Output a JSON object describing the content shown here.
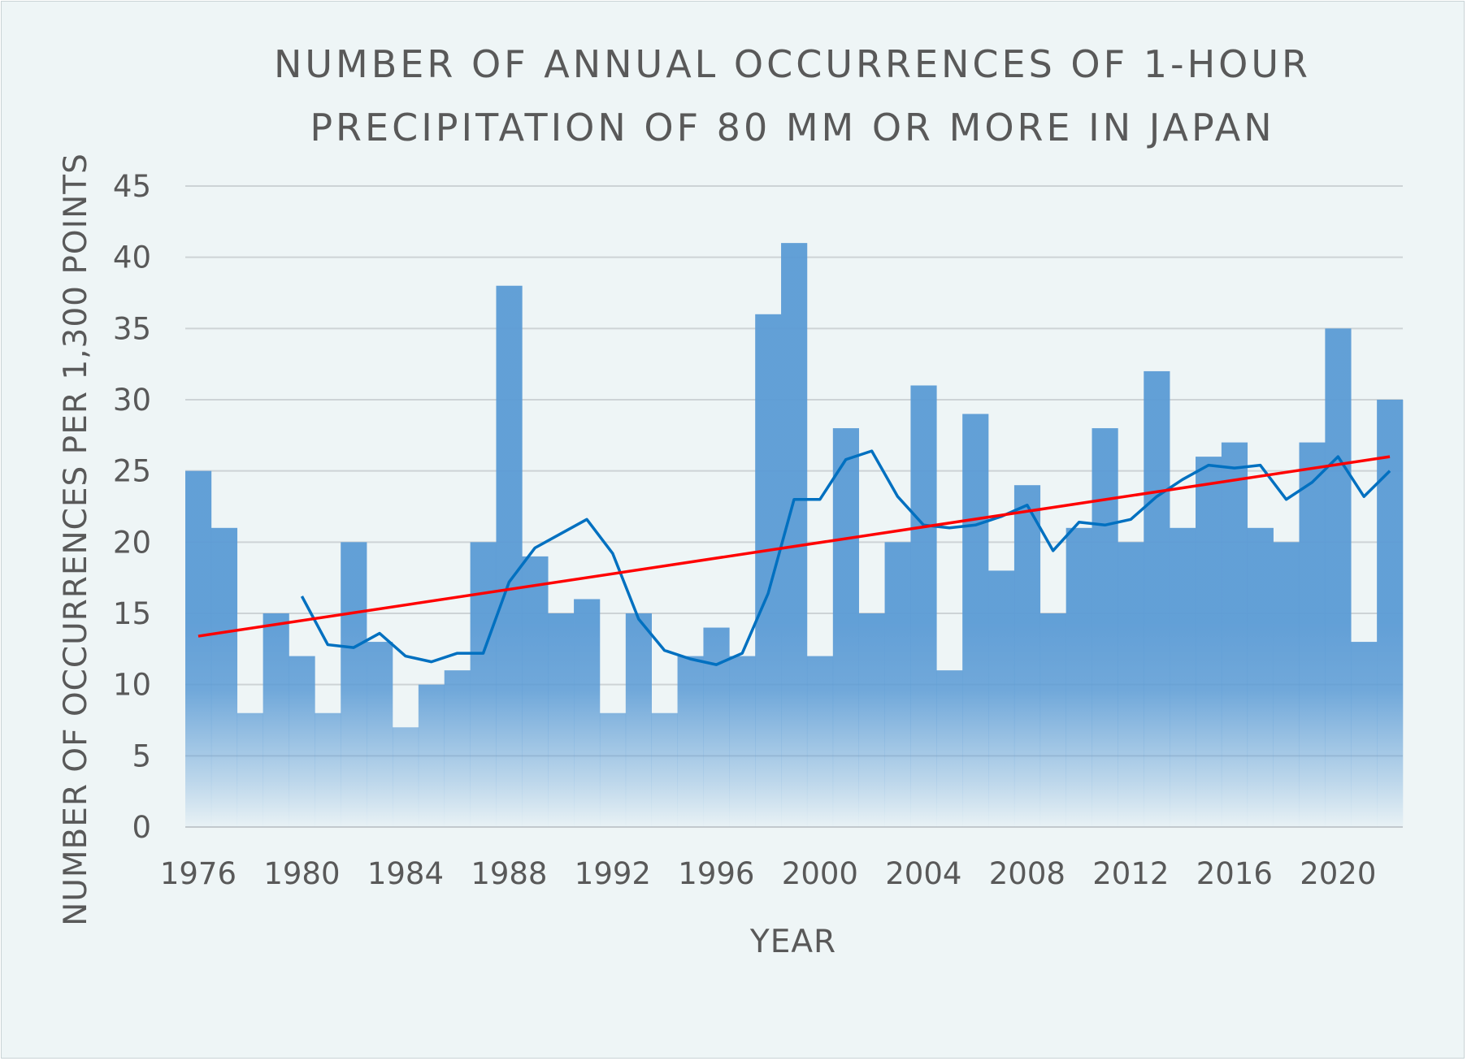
{
  "chart_data": {
    "type": "bar",
    "title_lines": [
      "NUMBER OF ANNUAL OCCURRENCES OF 1-HOUR",
      "PRECIPITATION OF 80 MM OR MORE IN JAPAN"
    ],
    "xlabel": "YEAR",
    "ylabel": "NUMBER OF OCCURRENCES PER 1,300 POINTS",
    "ylim": [
      0,
      45
    ],
    "yticks": [
      0,
      5,
      10,
      15,
      20,
      25,
      30,
      35,
      40,
      45
    ],
    "xtick_labels": [
      "1976",
      "1980",
      "1984",
      "1988",
      "1992",
      "1996",
      "2000",
      "2004",
      "2008",
      "2012",
      "2016",
      "2020"
    ],
    "grid": true,
    "legend": "none",
    "categories": [
      1976,
      1977,
      1978,
      1979,
      1980,
      1981,
      1982,
      1983,
      1984,
      1985,
      1986,
      1987,
      1988,
      1989,
      1990,
      1991,
      1992,
      1993,
      1994,
      1995,
      1996,
      1997,
      1998,
      1999,
      2000,
      2001,
      2002,
      2003,
      2004,
      2005,
      2006,
      2007,
      2008,
      2009,
      2010,
      2011,
      2012,
      2013,
      2014,
      2015,
      2016,
      2017,
      2018,
      2019,
      2020,
      2021,
      2022
    ],
    "series": [
      {
        "type": "bar",
        "values": [
          25,
          21,
          8,
          15,
          12,
          8,
          20,
          13,
          7,
          10,
          11,
          20,
          38,
          19,
          15,
          16,
          8,
          15,
          8,
          12,
          14,
          12,
          36,
          41,
          12,
          28,
          15,
          20,
          31,
          11,
          29,
          18,
          24,
          15,
          21,
          28,
          20,
          32,
          21,
          26,
          27,
          21,
          20,
          27,
          35,
          13,
          30
        ],
        "color": "#5b9bd5"
      },
      {
        "type": "line",
        "x": [
          1980,
          1981,
          1982,
          1983,
          1984,
          1985,
          1986,
          1987,
          1988,
          1989,
          1990,
          1991,
          1992,
          1993,
          1994,
          1995,
          1996,
          1997,
          1998,
          1999,
          2000,
          2001,
          2002,
          2003,
          2004,
          2005,
          2006,
          2007,
          2008,
          2009,
          2010,
          2011,
          2012,
          2013,
          2014,
          2015,
          2016,
          2017,
          2018,
          2019,
          2020,
          2021,
          2022
        ],
        "values": [
          16.2,
          12.8,
          12.6,
          13.6,
          12.0,
          11.6,
          12.2,
          12.2,
          17.2,
          19.6,
          20.6,
          21.6,
          19.2,
          14.6,
          12.4,
          11.8,
          11.4,
          12.2,
          16.4,
          23.0,
          23.0,
          25.8,
          26.4,
          23.2,
          21.2,
          21.0,
          21.2,
          21.8,
          22.6,
          19.4,
          21.4,
          21.2,
          21.6,
          23.2,
          24.4,
          25.4,
          25.2,
          25.4,
          23.0,
          24.2,
          26.0,
          23.2,
          25.0
        ],
        "color": "#0070c0"
      },
      {
        "type": "line",
        "x": [
          1976,
          2022
        ],
        "values": [
          13.4,
          26.0
        ],
        "color": "#ff0000"
      }
    ]
  }
}
